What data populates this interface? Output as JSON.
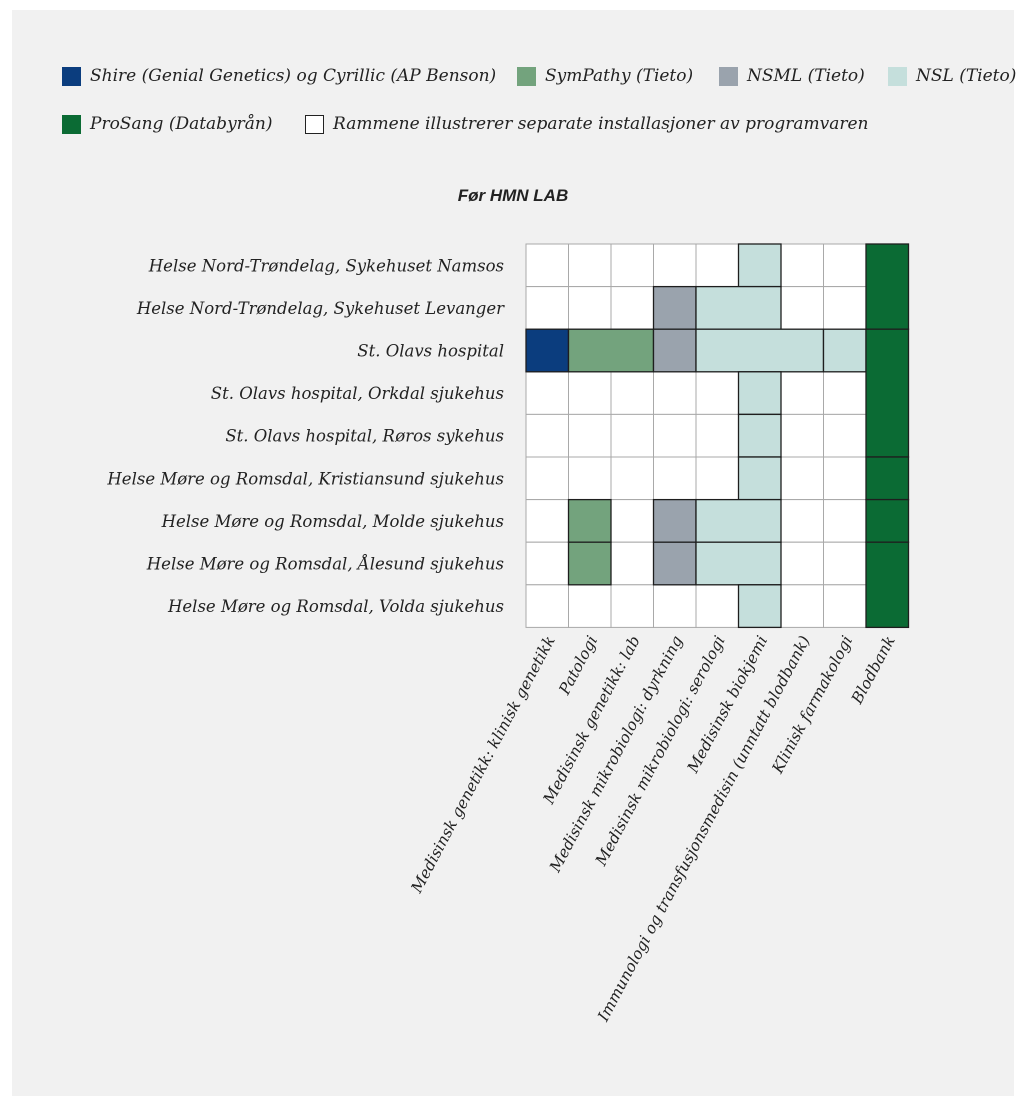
{
  "legend": [
    {
      "key": "shire",
      "label": "Shire (Genial Genetics) og Cyrillic (AP Benson)",
      "color": "#0b3d7e"
    },
    {
      "key": "sympathy",
      "label": "SymPathy (Tieto)",
      "color": "#73a37d"
    },
    {
      "key": "nsml",
      "label": "NSML (Tieto)",
      "color": "#9aa3ad"
    },
    {
      "key": "nsl",
      "label": "NSL (Tieto)",
      "color": "#c5dfdc"
    },
    {
      "key": "prosang",
      "label": "ProSang (Databyrån)",
      "color": "#0b6b34"
    },
    {
      "key": "frame",
      "label": "Rammene illustrerer separate installasjoner av programvaren",
      "color": "#ffffff"
    }
  ],
  "title": "Før HMN LAB",
  "rows": [
    "Helse Nord-Trøndelag, Sykehuset Namsos",
    "Helse Nord-Trøndelag, Sykehuset Levanger",
    "St. Olavs hospital",
    "St. Olavs hospital, Orkdal sjukehus",
    "St. Olavs hospital, Røros sykehus",
    "Helse Møre og Romsdal, Kristiansund sjukehus",
    "Helse Møre og Romsdal, Molde sjukehus",
    "Helse Møre og Romsdal, Ålesund sjukehus",
    "Helse Møre og Romsdal, Volda sjukehus"
  ],
  "columns": [
    "Medisinsk genetikk: klinisk genetikk",
    "Patologi",
    "Medisinsk genetikk: lab",
    "Medisinsk mikrobiologi: dyrkning",
    "Medisinsk mikrobiologi: serologi",
    "Medisinsk biokjemi",
    "Immunologi og transfusjonsmedisin (unntatt blodbank)",
    "Klinisk farmakologi",
    "Blodbank"
  ],
  "installations": [
    {
      "system": "nsl",
      "row": 0,
      "col_start": 5,
      "col_end": 5
    },
    {
      "system": "nsml",
      "row": 1,
      "col_start": 3,
      "col_end": 3
    },
    {
      "system": "nsl",
      "row": 1,
      "col_start": 4,
      "col_end": 5
    },
    {
      "system": "shire",
      "row": 2,
      "col_start": 0,
      "col_end": 0
    },
    {
      "system": "sympathy",
      "row": 2,
      "col_start": 1,
      "col_end": 2
    },
    {
      "system": "nsml",
      "row": 2,
      "col_start": 3,
      "col_end": 3
    },
    {
      "system": "nsl",
      "row": 2,
      "col_start": 4,
      "col_end": 6
    },
    {
      "system": "nsl",
      "row": 2,
      "col_start": 7,
      "col_end": 7
    },
    {
      "system": "nsl",
      "row": 3,
      "col_start": 5,
      "col_end": 5
    },
    {
      "system": "nsl",
      "row": 4,
      "col_start": 5,
      "col_end": 5
    },
    {
      "system": "nsl",
      "row": 5,
      "col_start": 5,
      "col_end": 5
    },
    {
      "system": "sympathy",
      "row": 6,
      "col_start": 1,
      "col_end": 1
    },
    {
      "system": "nsml",
      "row": 6,
      "col_start": 3,
      "col_end": 3
    },
    {
      "system": "nsl",
      "row": 6,
      "col_start": 4,
      "col_end": 5
    },
    {
      "system": "sympathy",
      "row": 7,
      "col_start": 1,
      "col_end": 1
    },
    {
      "system": "nsml",
      "row": 7,
      "col_start": 3,
      "col_end": 3
    },
    {
      "system": "nsl",
      "row": 7,
      "col_start": 4,
      "col_end": 5
    },
    {
      "system": "nsl",
      "row": 8,
      "col_start": 5,
      "col_end": 5
    },
    {
      "system": "prosang",
      "row": 0,
      "row_end": 1,
      "col_start": 8,
      "col_end": 8
    },
    {
      "system": "prosang",
      "row": 2,
      "row_end": 4,
      "col_start": 8,
      "col_end": 8
    },
    {
      "system": "prosang",
      "row": 5,
      "row_end": 5,
      "col_start": 8,
      "col_end": 8
    },
    {
      "system": "prosang",
      "row": 6,
      "row_end": 6,
      "col_start": 8,
      "col_end": 8
    },
    {
      "system": "prosang",
      "row": 7,
      "row_end": 8,
      "col_start": 8,
      "col_end": 8
    }
  ]
}
